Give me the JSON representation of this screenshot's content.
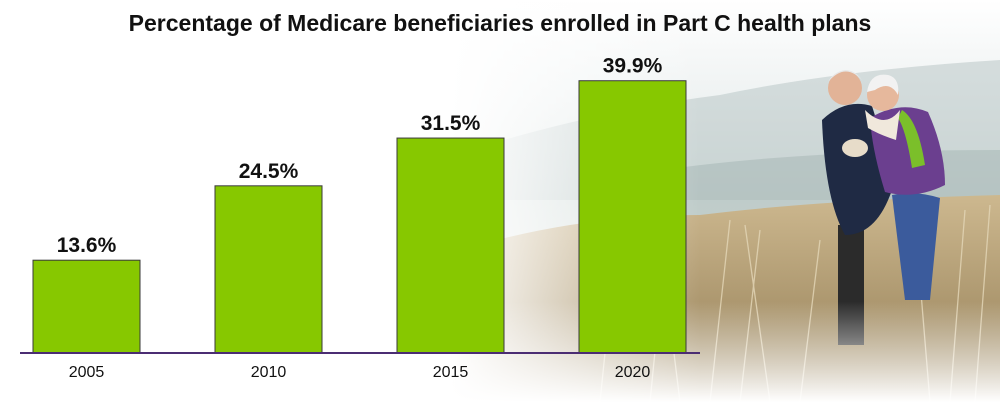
{
  "colors": {
    "bar": "#87c800",
    "axis": "#4b2d73"
  },
  "chart_data": {
    "type": "bar",
    "title": "Percentage of Medicare beneficiaries enrolled in Part C health plans",
    "categories": [
      "2005",
      "2010",
      "2015",
      "2020"
    ],
    "values": [
      13.6,
      24.5,
      31.5,
      39.9
    ],
    "value_labels": [
      "13.6%",
      "24.5%",
      "31.5%",
      "39.9%"
    ],
    "ylim": [
      0,
      40.3
    ],
    "grid": false,
    "legend": "none"
  },
  "background": {
    "icon": "photo-senior-couple-in-dunes"
  }
}
